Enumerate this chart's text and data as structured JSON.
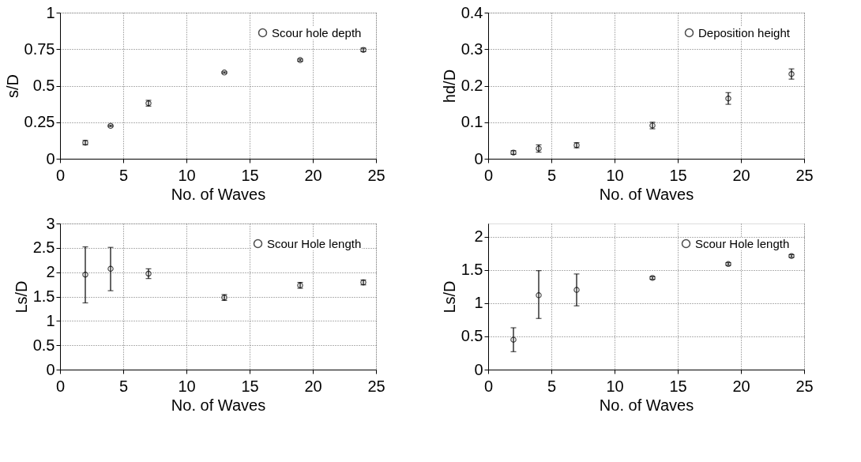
{
  "chart_data": [
    {
      "type": "scatter",
      "xlabel": "No. of Waves",
      "ylabel": "s/D",
      "x": [
        2,
        4,
        7,
        13,
        19,
        24
      ],
      "xlim": [
        0,
        25
      ],
      "xticks": [
        0,
        5,
        10,
        15,
        20,
        25
      ],
      "ylim": [
        0,
        1
      ],
      "yticks": [
        0,
        0.25,
        0.5,
        0.75,
        1
      ],
      "grid": true,
      "legend": "top right",
      "marker": "circle",
      "series": [
        {
          "name": "Scour hole depth",
          "color": "#000000",
          "values": [
            0.11,
            0.225,
            0.38,
            0.59,
            0.675,
            0.745
          ],
          "errors": [
            0.015,
            0.005,
            0.02,
            0.005,
            0.007,
            0.012
          ]
        }
      ]
    },
    {
      "type": "scatter",
      "xlabel": "No. of Waves",
      "ylabel": "hd/D",
      "x": [
        2,
        4,
        7,
        13,
        19,
        24
      ],
      "xlim": [
        0,
        25
      ],
      "xticks": [
        0,
        5,
        10,
        15,
        20,
        25
      ],
      "ylim": [
        0,
        0.4
      ],
      "yticks": [
        0,
        0.1,
        0.2,
        0.3,
        0.4
      ],
      "grid": true,
      "legend": "top right",
      "marker": "circle",
      "series": [
        {
          "name": "Deposition height",
          "color": "#000000",
          "values": [
            0.017,
            0.028,
            0.037,
            0.091,
            0.165,
            0.232
          ],
          "errors": [
            0.005,
            0.01,
            0.007,
            0.009,
            0.016,
            0.014
          ]
        }
      ]
    },
    {
      "type": "scatter",
      "xlabel": "No. of Waves",
      "ylabel": "Ls/D",
      "x": [
        2,
        4,
        7,
        13,
        19,
        24
      ],
      "xlim": [
        0,
        25
      ],
      "xticks": [
        0,
        5,
        10,
        15,
        20,
        25
      ],
      "ylim": [
        0,
        3
      ],
      "yticks": [
        0,
        0.5,
        1,
        1.5,
        2,
        2.5,
        3
      ],
      "grid": true,
      "legend": "top right",
      "marker": "circle",
      "series": [
        {
          "name": "Scour Hole length",
          "color": "#000000",
          "values": [
            1.95,
            2.07,
            1.97,
            1.48,
            1.73,
            1.79
          ],
          "errors": [
            [
              1.37,
              2.52
            ],
            [
              1.62,
              2.51
            ],
            0.1,
            0.06,
            0.06,
            0.05
          ]
        }
      ]
    },
    {
      "type": "scatter",
      "xlabel": "No. of Waves",
      "ylabel": "Ls/D",
      "x": [
        2,
        4,
        7,
        13,
        19,
        24
      ],
      "xlim": [
        0,
        25
      ],
      "xticks": [
        0,
        5,
        10,
        15,
        20,
        25
      ],
      "ylim": [
        0,
        2.2
      ],
      "yticks": [
        0,
        0.5,
        1,
        1.5,
        2
      ],
      "grid": true,
      "legend": "top right",
      "marker": "circle",
      "series": [
        {
          "name": "Scour Hole length",
          "color": "#000000",
          "values": [
            0.45,
            1.12,
            1.2,
            1.38,
            1.59,
            1.71
          ],
          "errors": [
            [
              0.27,
              0.63
            ],
            [
              0.77,
              1.49
            ],
            [
              0.96,
              1.44
            ],
            0.02,
            0.02,
            0.02
          ]
        }
      ]
    }
  ]
}
